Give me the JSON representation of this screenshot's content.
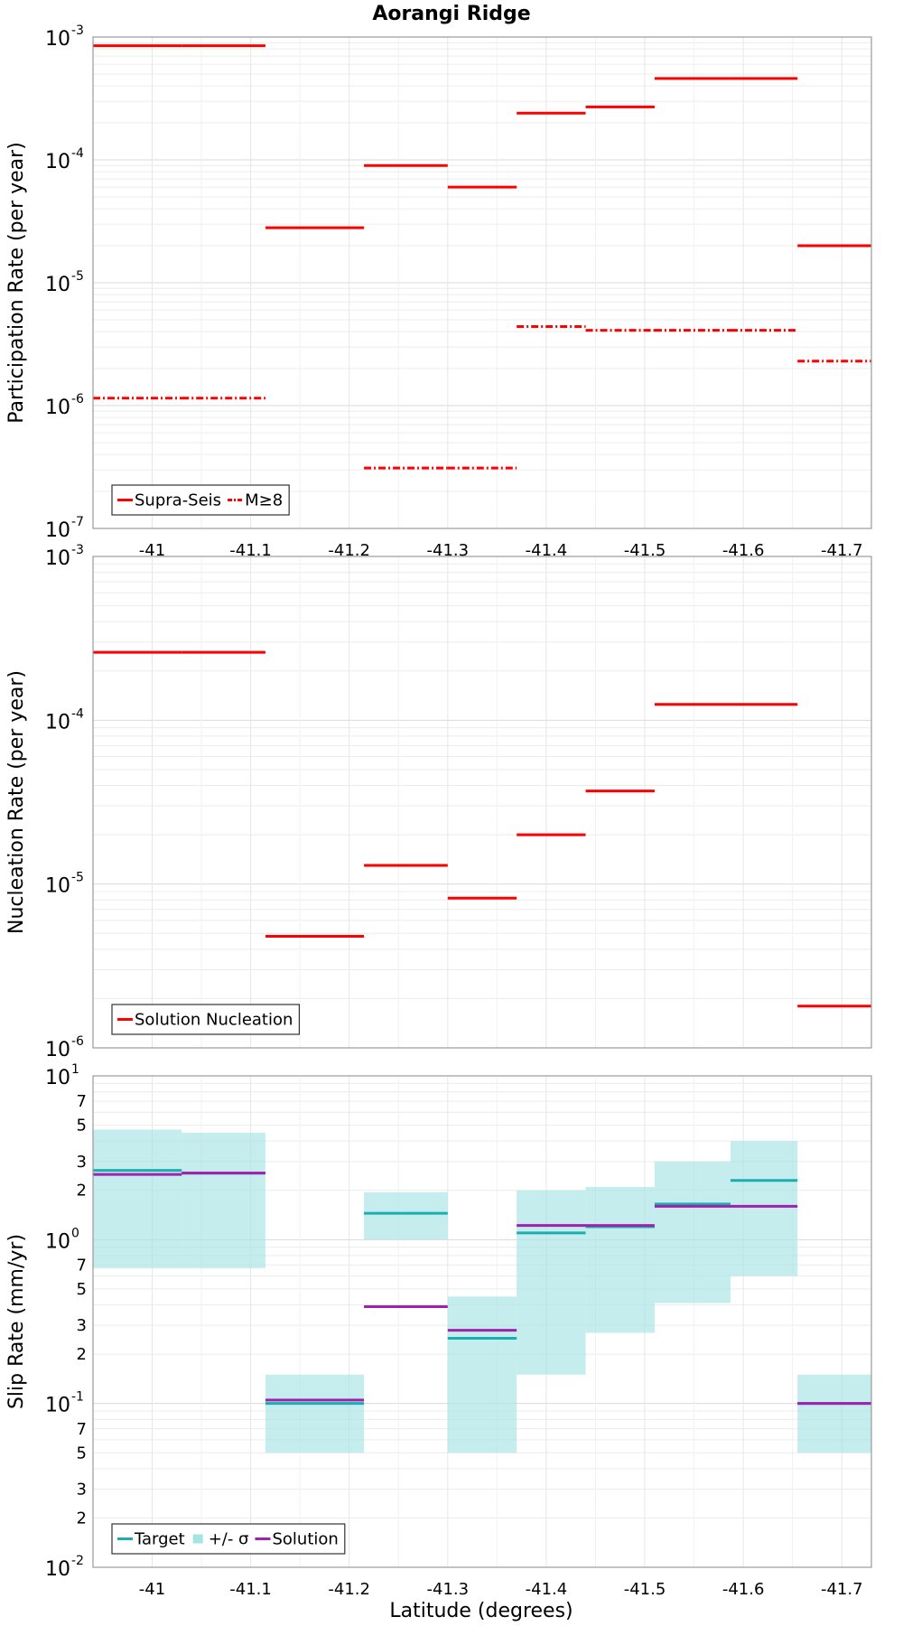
{
  "chart_data": [
    {
      "type": "line",
      "title": "Aorangi Ridge",
      "ylabel": "Participation Rate (per year)",
      "xlabel": "",
      "yscale": "log",
      "ylim": [
        1e-07,
        0.001
      ],
      "xlim": [
        -40.94,
        -41.73
      ],
      "xticks": [
        "-41",
        "-41.1",
        "-41.2",
        "-41.3",
        "-41.4",
        "-41.5",
        "-41.6",
        "-41.7"
      ],
      "xtick_values": [
        -41.0,
        -41.1,
        -41.2,
        -41.3,
        -41.4,
        -41.5,
        -41.6,
        -41.7
      ],
      "ytick_mantissa": "10",
      "ytick_exponents": [
        "-7",
        "-6",
        "-5",
        "-4",
        "-3"
      ],
      "legend": [
        "Supra-Seis",
        "M≥8"
      ],
      "series": [
        {
          "name": "Supra-Seis",
          "color": "#ff0000",
          "style": "solid",
          "segments": [
            {
              "x0": -40.94,
              "x1": -41.03,
              "y": 0.00085
            },
            {
              "x0": -41.03,
              "x1": -41.115,
              "y": 0.00085
            },
            {
              "x0": -41.115,
              "x1": -41.215,
              "y": 2.8e-05
            },
            {
              "x0": -41.215,
              "x1": -41.3,
              "y": 9e-05
            },
            {
              "x0": -41.3,
              "x1": -41.37,
              "y": 6e-05
            },
            {
              "x0": -41.37,
              "x1": -41.44,
              "y": 0.00024
            },
            {
              "x0": -41.44,
              "x1": -41.51,
              "y": 0.00027
            },
            {
              "x0": -41.51,
              "x1": -41.587,
              "y": 0.00046
            },
            {
              "x0": -41.587,
              "x1": -41.655,
              "y": 0.00046
            },
            {
              "x0": -41.655,
              "x1": -41.73,
              "y": 2e-05
            }
          ]
        },
        {
          "name": "M≥8",
          "color": "#ff0000",
          "style": "dashdot",
          "segments": [
            {
              "x0": -40.94,
              "x1": -41.03,
              "y": 1.15e-06
            },
            {
              "x0": -41.03,
              "x1": -41.115,
              "y": 1.15e-06
            },
            {
              "x0": -41.215,
              "x1": -41.3,
              "y": 3.1e-07
            },
            {
              "x0": -41.3,
              "x1": -41.37,
              "y": 3.1e-07
            },
            {
              "x0": -41.37,
              "x1": -41.44,
              "y": 4.4e-06
            },
            {
              "x0": -41.44,
              "x1": -41.51,
              "y": 4.1e-06
            },
            {
              "x0": -41.51,
              "x1": -41.587,
              "y": 4.1e-06
            },
            {
              "x0": -41.587,
              "x1": -41.655,
              "y": 4.1e-06
            },
            {
              "x0": -41.655,
              "x1": -41.73,
              "y": 2.3e-06
            }
          ]
        }
      ]
    },
    {
      "type": "line",
      "title": "",
      "ylabel": "Nucleation Rate (per year)",
      "xlabel": "",
      "yscale": "log",
      "ylim": [
        1e-06,
        0.001
      ],
      "xlim": [
        -40.94,
        -41.73
      ],
      "ytick_mantissa": "10",
      "ytick_exponents": [
        "-6",
        "-5",
        "-4",
        "-3"
      ],
      "legend": [
        "Solution Nucleation"
      ],
      "series": [
        {
          "name": "Solution Nucleation",
          "color": "#ff0000",
          "style": "solid",
          "segments": [
            {
              "x0": -40.94,
              "x1": -41.03,
              "y": 0.00026
            },
            {
              "x0": -41.03,
              "x1": -41.115,
              "y": 0.00026
            },
            {
              "x0": -41.115,
              "x1": -41.215,
              "y": 4.8e-06
            },
            {
              "x0": -41.215,
              "x1": -41.3,
              "y": 1.3e-05
            },
            {
              "x0": -41.3,
              "x1": -41.37,
              "y": 8.2e-06
            },
            {
              "x0": -41.37,
              "x1": -41.44,
              "y": 2e-05
            },
            {
              "x0": -41.44,
              "x1": -41.51,
              "y": 3.7e-05
            },
            {
              "x0": -41.51,
              "x1": -41.587,
              "y": 0.000125
            },
            {
              "x0": -41.587,
              "x1": -41.655,
              "y": 0.000125
            },
            {
              "x0": -41.655,
              "x1": -41.73,
              "y": 1.8e-06
            }
          ]
        }
      ]
    },
    {
      "type": "line",
      "title": "",
      "ylabel": "Slip Rate (mm/yr)",
      "xlabel": "Latitude (degrees)",
      "yscale": "log",
      "ylim": [
        0.01,
        10
      ],
      "xlim": [
        -40.94,
        -41.73
      ],
      "xticks": [
        "-41",
        "-41.1",
        "-41.2",
        "-41.3",
        "-41.4",
        "-41.5",
        "-41.6",
        "-41.7"
      ],
      "xtick_values": [
        -41.0,
        -41.1,
        -41.2,
        -41.3,
        -41.4,
        -41.5,
        -41.6,
        -41.7
      ],
      "ytick_mantissa": "10",
      "ytick_exponents": [
        "-2",
        "-1",
        "0",
        "1"
      ],
      "minor_tick_labels": [
        "2",
        "3",
        "5",
        "7"
      ],
      "legend": [
        "Target",
        "+/- σ",
        "Solution"
      ],
      "bands": [
        {
          "x0": -40.94,
          "x1": -41.03,
          "lo": 0.67,
          "hi": 4.7
        },
        {
          "x0": -41.03,
          "x1": -41.115,
          "lo": 0.67,
          "hi": 4.5
        },
        {
          "x0": -41.115,
          "x1": -41.215,
          "lo": 0.05,
          "hi": 0.15
        },
        {
          "x0": -41.215,
          "x1": -41.3,
          "lo": 1.0,
          "hi": 1.95
        },
        {
          "x0": -41.3,
          "x1": -41.37,
          "lo": 0.05,
          "hi": 0.45
        },
        {
          "x0": -41.37,
          "x1": -41.44,
          "lo": 0.15,
          "hi": 2.0
        },
        {
          "x0": -41.44,
          "x1": -41.51,
          "lo": 0.27,
          "hi": 2.1
        },
        {
          "x0": -41.51,
          "x1": -41.587,
          "lo": 0.41,
          "hi": 3.0
        },
        {
          "x0": -41.587,
          "x1": -41.655,
          "lo": 0.6,
          "hi": 4.0
        },
        {
          "x0": -41.655,
          "x1": -41.73,
          "lo": 0.05,
          "hi": 0.15
        }
      ],
      "series": [
        {
          "name": "Target",
          "color": "#1aaeae",
          "segments": [
            {
              "x0": -40.94,
              "x1": -41.03,
              "y": 2.65
            },
            {
              "x0": -41.03,
              "x1": -41.115,
              "y": 2.55
            },
            {
              "x0": -41.115,
              "x1": -41.215,
              "y": 0.1
            },
            {
              "x0": -41.215,
              "x1": -41.3,
              "y": 1.45
            },
            {
              "x0": -41.3,
              "x1": -41.37,
              "y": 0.25
            },
            {
              "x0": -41.37,
              "x1": -41.44,
              "y": 1.1
            },
            {
              "x0": -41.44,
              "x1": -41.51,
              "y": 1.2
            },
            {
              "x0": -41.51,
              "x1": -41.587,
              "y": 1.65
            },
            {
              "x0": -41.587,
              "x1": -41.655,
              "y": 2.3
            },
            {
              "x0": -41.655,
              "x1": -41.73,
              "y": 0.1
            }
          ]
        },
        {
          "name": "Solution",
          "color": "#a020b0",
          "segments": [
            {
              "x0": -40.94,
              "x1": -41.03,
              "y": 2.5
            },
            {
              "x0": -41.03,
              "x1": -41.115,
              "y": 2.55
            },
            {
              "x0": -41.115,
              "x1": -41.215,
              "y": 0.105
            },
            {
              "x0": -41.215,
              "x1": -41.3,
              "y": 0.39
            },
            {
              "x0": -41.3,
              "x1": -41.37,
              "y": 0.28
            },
            {
              "x0": -41.37,
              "x1": -41.44,
              "y": 1.22
            },
            {
              "x0": -41.44,
              "x1": -41.51,
              "y": 1.22
            },
            {
              "x0": -41.51,
              "x1": -41.587,
              "y": 1.6
            },
            {
              "x0": -41.587,
              "x1": -41.655,
              "y": 1.6
            },
            {
              "x0": -41.655,
              "x1": -41.73,
              "y": 0.1
            }
          ]
        }
      ]
    }
  ]
}
